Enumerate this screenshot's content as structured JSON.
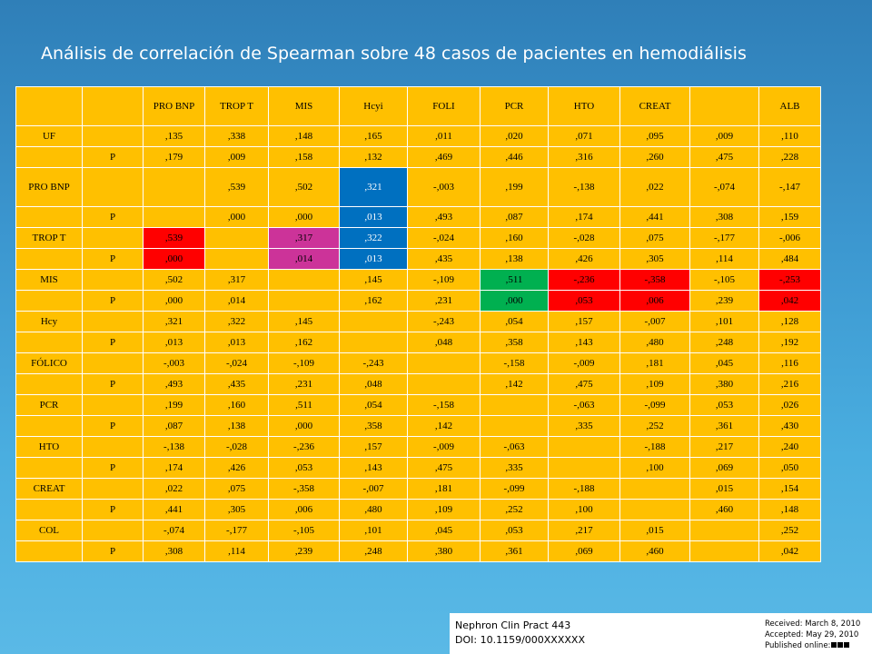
{
  "title": "Análisis de correlación de Spearman sobre 48 casos de pacientes en hemodiálisis",
  "table": {
    "headers": [
      "",
      "",
      "PRO BNP",
      "TROP T",
      "MIS",
      "Hcyi",
      "FOLI",
      "PCR",
      "HTO",
      "CREAT",
      "",
      "ALB"
    ],
    "rows": [
      {
        "label": "UF",
        "sub": "",
        "cells": [
          ",135",
          ",338",
          ",148",
          ",165",
          ",011",
          ",020",
          ",071",
          ",095",
          ",009",
          ",110"
        ]
      },
      {
        "label": "",
        "sub": "P",
        "cells": [
          ",179",
          ",009",
          ",158",
          ",132",
          ",469",
          ",446",
          ",316",
          ",260",
          ",475",
          ",228"
        ]
      },
      {
        "label": "PRO BNP",
        "sub": "",
        "cells": [
          "",
          ",539",
          ",502",
          ",321",
          "-,003",
          ",199",
          "-,138",
          ",022",
          "-,074",
          "-,147"
        ]
      },
      {
        "label": "",
        "sub": "P",
        "cells": [
          "",
          ",000",
          ",000",
          ",013",
          ",493",
          ",087",
          ",174",
          ",441",
          ",308",
          ",159"
        ]
      },
      {
        "label": "TROP T",
        "sub": "",
        "cells": [
          ",539",
          "",
          ",317",
          ",322",
          "-,024",
          ",160",
          "-,028",
          ",075",
          "-,177",
          "-,006"
        ]
      },
      {
        "label": "",
        "sub": "P",
        "cells": [
          ",000",
          "",
          ",014",
          ",013",
          ",435",
          ",138",
          ",426",
          ",305",
          ",114",
          ",484"
        ]
      },
      {
        "label": "MIS",
        "sub": "",
        "cells": [
          ",502",
          ",317",
          "",
          ",145",
          "-,109",
          ",511",
          "-,236",
          "-,358",
          "-,105",
          "-,253"
        ]
      },
      {
        "label": "",
        "sub": "P",
        "cells": [
          ",000",
          ",014",
          "",
          ",162",
          ",231",
          ",000",
          ",053",
          ",006",
          ",239",
          ",042"
        ]
      },
      {
        "label": "Hcy",
        "sub": "",
        "cells": [
          ",321",
          ",322",
          ",145",
          "",
          "-,243",
          ",054",
          ",157",
          "-,007",
          ",101",
          ",128"
        ]
      },
      {
        "label": "",
        "sub": "P",
        "cells": [
          ",013",
          ",013",
          ",162",
          "",
          ",048",
          ",358",
          ",143",
          ",480",
          ",248",
          ",192"
        ]
      },
      {
        "label": "FÓLICO",
        "sub": "",
        "cells": [
          "-,003",
          "-,024",
          "-,109",
          "-,243",
          "",
          "-,158",
          "-,009",
          ",181",
          ",045",
          ",116"
        ]
      },
      {
        "label": "",
        "sub": "P",
        "cells": [
          ",493",
          ",435",
          ",231",
          ",048",
          "",
          ",142",
          ",475",
          ",109",
          ",380",
          ",216"
        ]
      },
      {
        "label": "PCR",
        "sub": "",
        "cells": [
          ",199",
          ",160",
          ",511",
          ",054",
          "-,158",
          "",
          "-,063",
          "-,099",
          ",053",
          ",026"
        ]
      },
      {
        "label": "",
        "sub": "P",
        "cells": [
          ",087",
          ",138",
          ",000",
          ",358",
          ",142",
          "",
          ",335",
          ",252",
          ",361",
          ",430"
        ]
      },
      {
        "label": "HTO",
        "sub": "",
        "cells": [
          "-,138",
          "-,028",
          "-,236",
          ",157",
          "-,009",
          "-,063",
          "",
          "-,188",
          ",217",
          ",240"
        ]
      },
      {
        "label": "",
        "sub": "P",
        "cells": [
          ",174",
          ",426",
          ",053",
          ",143",
          ",475",
          ",335",
          "",
          ",100",
          ",069",
          ",050"
        ]
      },
      {
        "label": "CREAT",
        "sub": "",
        "cells": [
          ",022",
          ",075",
          "-,358",
          "-,007",
          ",181",
          "-,099",
          "-,188",
          "",
          ",015",
          ",154"
        ]
      },
      {
        "label": "",
        "sub": "P",
        "cells": [
          ",441",
          ",305",
          ",006",
          ",480",
          ",109",
          ",252",
          ",100",
          "",
          ",460",
          ",148"
        ]
      },
      {
        "label": "COL",
        "sub": "",
        "cells": [
          "-,074",
          "-,177",
          "-,105",
          ",101",
          ",045",
          ",053",
          ",217",
          ",015",
          "",
          ",252"
        ]
      },
      {
        "label": "",
        "sub": "P",
        "cells": [
          ",308",
          ",114",
          ",239",
          ",248",
          ",380",
          ",361",
          ",069",
          ",460",
          "",
          ",042"
        ]
      }
    ]
  },
  "footer": {
    "journal": "Nephron Clin Pract 443",
    "doi": "DOI: 10.1159/000XXXXXX",
    "received": "Received: March 8, 2010",
    "accepted": "Accepted: May 29, 2010",
    "published": "Published online:"
  },
  "colors": {
    "background": "#3b96cf",
    "cell": "#ffc000",
    "red": "#ff0000",
    "magenta": "#cc3399",
    "blue": "#0070c0",
    "green": "#00b050"
  }
}
